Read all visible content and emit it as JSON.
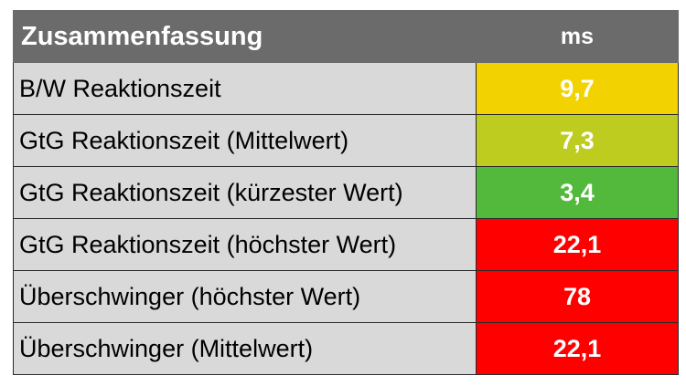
{
  "header": {
    "title": "Zusammenfassung",
    "unit": "ms"
  },
  "rows": [
    {
      "label": "B/W Reaktionszeit",
      "value": "9,7",
      "color": "#f2d200"
    },
    {
      "label": "GtG Reaktionszeit (Mittelwert)",
      "value": "7,3",
      "color": "#bdcc1e"
    },
    {
      "label": "GtG Reaktionszeit (kürzester Wert)",
      "value": "3,4",
      "color": "#53b93c"
    },
    {
      "label": "GtG Reaktionszeit (höchster Wert)",
      "value": "22,1",
      "color": "#fe0000"
    },
    {
      "label": "Überschwinger (höchster Wert)",
      "value": "78",
      "color": "#fe0000"
    },
    {
      "label": "Überschwinger (Mittelwert)",
      "value": "22,1",
      "color": "#fe0000"
    }
  ]
}
